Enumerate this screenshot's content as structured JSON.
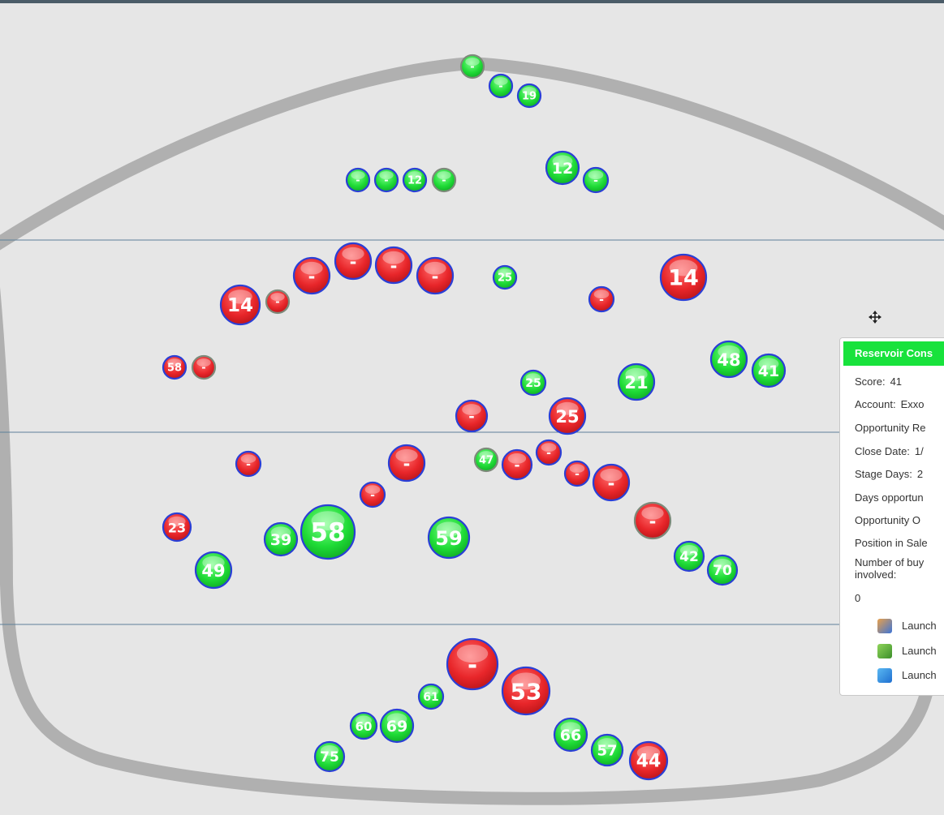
{
  "bubbles": [
    {
      "label": "-",
      "color": "green",
      "outline": "gray"
    },
    {
      "label": "-",
      "color": "green",
      "outline": "blue"
    },
    {
      "label": 19,
      "color": "green",
      "outline": "blue"
    },
    {
      "label": "-",
      "color": "green",
      "outline": "blue"
    },
    {
      "label": "-",
      "color": "green",
      "outline": "blue"
    },
    {
      "label": 12,
      "color": "green",
      "outline": "blue"
    },
    {
      "label": "-",
      "color": "green",
      "outline": "gray"
    },
    {
      "label": 12,
      "color": "green",
      "outline": "blue"
    },
    {
      "label": "-",
      "color": "green",
      "outline": "blue"
    },
    {
      "label": "-",
      "color": "red",
      "outline": "blue"
    },
    {
      "label": "-",
      "color": "red",
      "outline": "blue"
    },
    {
      "label": "-",
      "color": "red",
      "outline": "blue"
    },
    {
      "label": "-",
      "color": "red",
      "outline": "blue"
    },
    {
      "label": 25,
      "color": "green",
      "outline": "blue"
    },
    {
      "label": 14,
      "color": "red",
      "outline": "blue"
    },
    {
      "label": 14,
      "color": "red",
      "outline": "blue"
    },
    {
      "label": "-",
      "color": "red",
      "outline": "gray"
    },
    {
      "label": "-",
      "color": "red",
      "outline": "blue"
    },
    {
      "label": 58,
      "color": "red",
      "outline": "blue"
    },
    {
      "label": "-",
      "color": "red",
      "outline": "gray"
    },
    {
      "label": 48,
      "color": "green",
      "outline": "blue"
    },
    {
      "label": 41,
      "color": "green",
      "outline": "blue"
    },
    {
      "label": 25,
      "color": "green",
      "outline": "blue"
    },
    {
      "label": 21,
      "color": "green",
      "outline": "blue"
    },
    {
      "label": "-",
      "color": "red",
      "outline": "blue"
    },
    {
      "label": 25,
      "color": "red",
      "outline": "blue"
    },
    {
      "label": "-",
      "color": "red",
      "outline": "blue"
    },
    {
      "label": "-",
      "color": "red",
      "outline": "blue"
    },
    {
      "label": 47,
      "color": "green",
      "outline": "gray"
    },
    {
      "label": "-",
      "color": "red",
      "outline": "blue"
    },
    {
      "label": "-",
      "color": "red",
      "outline": "blue"
    },
    {
      "label": "-",
      "color": "red",
      "outline": "blue"
    },
    {
      "label": "-",
      "color": "red",
      "outline": "blue"
    },
    {
      "label": "-",
      "color": "red",
      "outline": "blue"
    },
    {
      "label": "-",
      "color": "red",
      "outline": "gray"
    },
    {
      "label": 23,
      "color": "red",
      "outline": "blue"
    },
    {
      "label": 58,
      "color": "green",
      "outline": "blue"
    },
    {
      "label": 59,
      "color": "green",
      "outline": "blue"
    },
    {
      "label": 39,
      "color": "green",
      "outline": "blue"
    },
    {
      "label": 49,
      "color": "green",
      "outline": "blue"
    },
    {
      "label": 42,
      "color": "green",
      "outline": "blue"
    },
    {
      "label": 70,
      "color": "green",
      "outline": "blue"
    },
    {
      "label": "-",
      "color": "red",
      "outline": "blue"
    },
    {
      "label": 53,
      "color": "red",
      "outline": "blue"
    },
    {
      "label": 61,
      "color": "green",
      "outline": "blue"
    },
    {
      "label": 60,
      "color": "green",
      "outline": "blue"
    },
    {
      "label": 69,
      "color": "green",
      "outline": "blue"
    },
    {
      "label": 66,
      "color": "green",
      "outline": "blue"
    },
    {
      "label": 57,
      "color": "green",
      "outline": "blue"
    },
    {
      "label": 44,
      "color": "red",
      "outline": "blue"
    },
    {
      "label": 75,
      "color": "green",
      "outline": "blue"
    }
  ],
  "tooltip": {
    "title": "Reservoir Cons",
    "rows": [
      {
        "label": "Score:",
        "value": "41"
      },
      {
        "label": "Account:",
        "value": "Exxo"
      },
      {
        "label": "Opportunity Re"
      },
      {
        "label": "Close Date:",
        "value": "1/"
      },
      {
        "label": "Stage Days:",
        "value": "2"
      },
      {
        "label": "Days opportun"
      },
      {
        "label": "Opportunity O"
      },
      {
        "label": "Position in Sale"
      },
      {
        "label": "Number of buy"
      },
      {
        "label": "involved:"
      },
      {
        "label": "0"
      }
    ],
    "launch": [
      "Launch",
      "Launch",
      "Launch"
    ]
  }
}
